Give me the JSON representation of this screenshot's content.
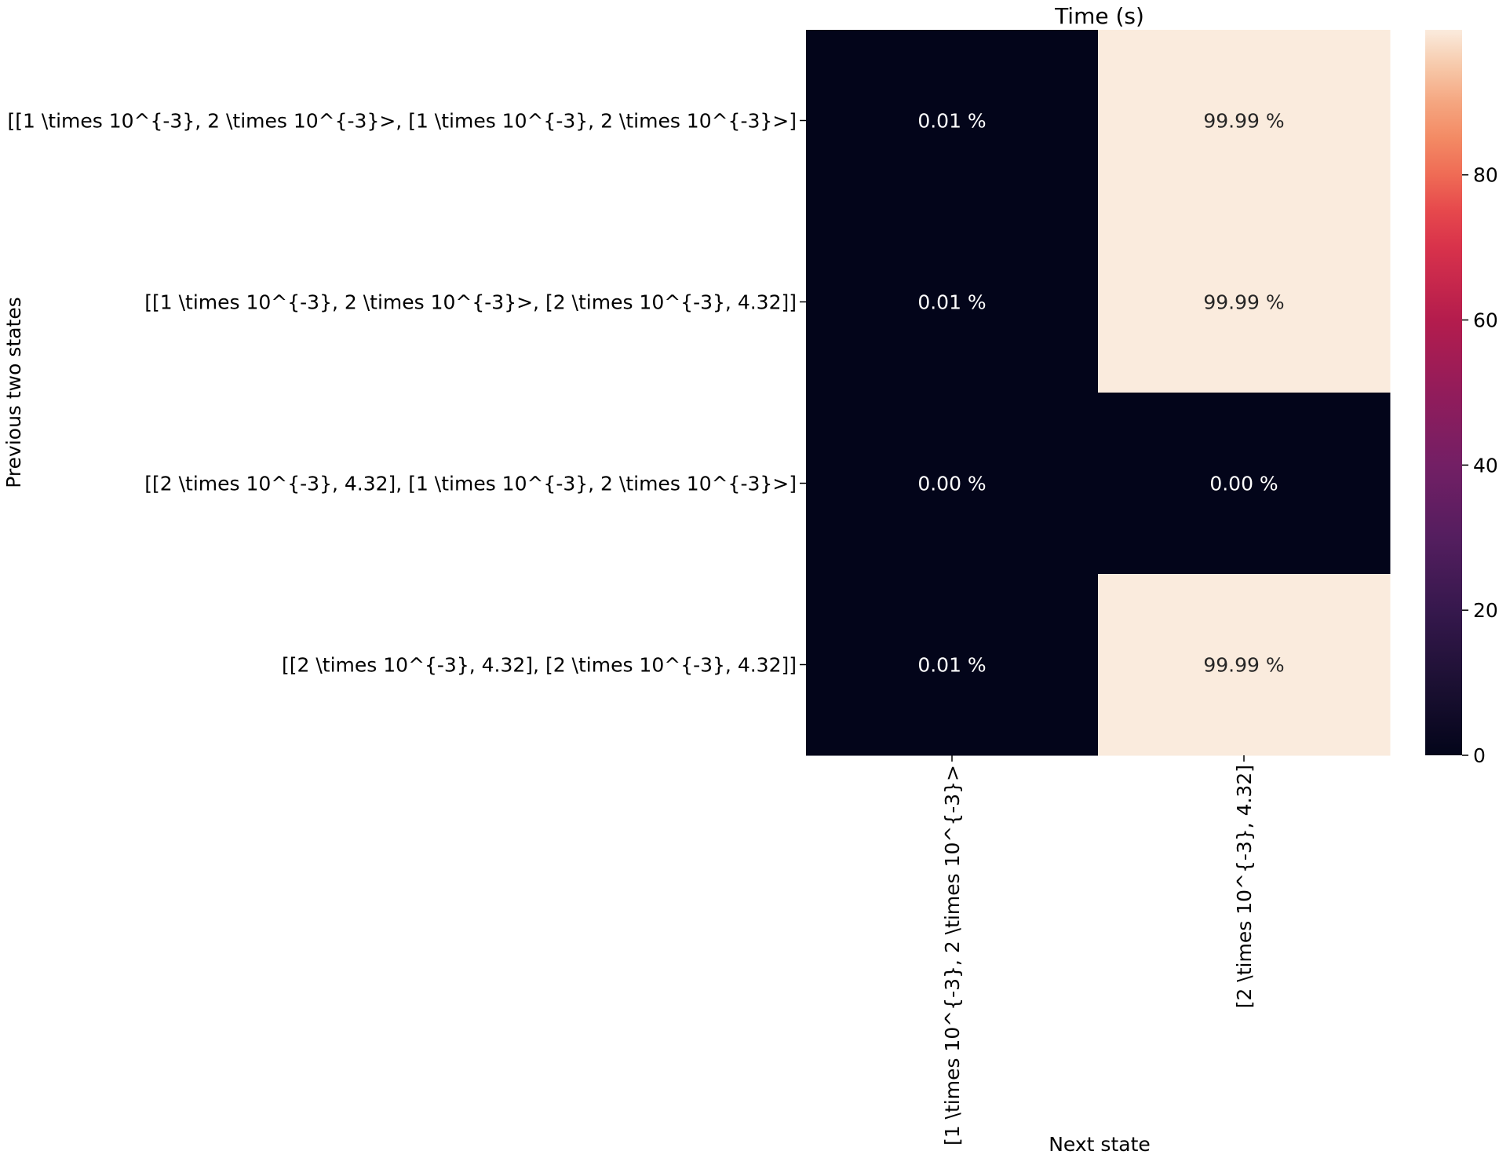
{
  "chart_data": {
    "type": "heatmap",
    "title": "Time (s)",
    "xlabel": "Next state",
    "ylabel": "Previous two states",
    "x_categories": [
      "[1 \\times 10^{-3}, 2 \\times 10^{-3}>",
      "[2 \\times 10^{-3}, 4.32]"
    ],
    "y_categories": [
      "[[1 \\times 10^{-3}, 2 \\times 10^{-3}>, [1 \\times 10^{-3}, 2 \\times 10^{-3}>]",
      "[[1 \\times 10^{-3}, 2 \\times 10^{-3}>, [2 \\times 10^{-3}, 4.32]]",
      "[[2 \\times 10^{-3}, 4.32], [1 \\times 10^{-3}, 2 \\times 10^{-3}>]",
      "[[2 \\times 10^{-3}, 4.32], [2 \\times 10^{-3}, 4.32]]"
    ],
    "values": [
      [
        0.01,
        99.99
      ],
      [
        0.01,
        99.99
      ],
      [
        0.0,
        0.0
      ],
      [
        0.01,
        99.99
      ]
    ],
    "annotations": [
      [
        "0.01 %",
        "99.99 %"
      ],
      [
        "0.01 %",
        "99.99 %"
      ],
      [
        "0.00 %",
        "0.00 %"
      ],
      [
        "0.01 %",
        "99.99 %"
      ]
    ],
    "colorbar": {
      "ticks": [
        "0",
        "20",
        "40",
        "60",
        "80"
      ],
      "range": [
        0,
        99.99
      ],
      "colormap": "rocket"
    },
    "colors": {
      "low": "#03051a",
      "high": "#faebdd",
      "annotation_dark_bg": "#ffffff",
      "annotation_light_bg": "#262626"
    }
  }
}
